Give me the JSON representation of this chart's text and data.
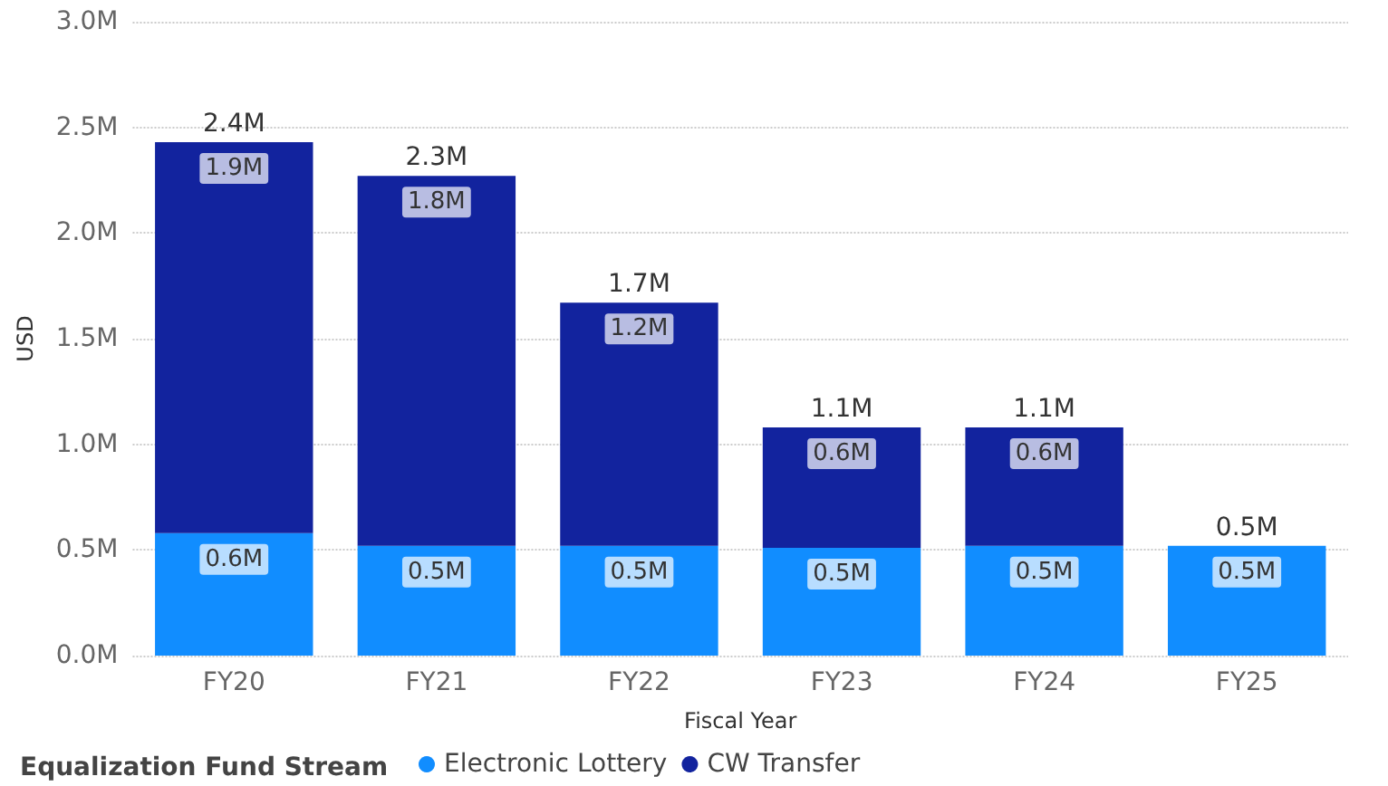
{
  "chart_data": {
    "type": "bar",
    "xlabel": "Fiscal Year",
    "ylabel": "USD",
    "legend_title": "Equalization Fund Stream",
    "categories": [
      "FY20",
      "FY21",
      "FY22",
      "FY23",
      "FY24",
      "FY25"
    ],
    "stacked": true,
    "series": [
      {
        "name": "Electronic Lottery",
        "color": "#118dff",
        "values": [
          0.58,
          0.52,
          0.52,
          0.51,
          0.52,
          0.52
        ],
        "value_labels": [
          "0.6M",
          "0.5M",
          "0.5M",
          "0.5M",
          "0.5M",
          "0.5M"
        ]
      },
      {
        "name": "CW Transfer",
        "color": "#12239e",
        "values": [
          1.85,
          1.75,
          1.15,
          0.57,
          0.56,
          null
        ],
        "value_labels": [
          "1.9M",
          "1.8M",
          "1.2M",
          "0.6M",
          "0.6M",
          null
        ]
      }
    ],
    "totals": [
      "2.4M",
      "2.3M",
      "1.7M",
      "1.1M",
      "1.1M",
      "0.5M"
    ],
    "ylim": [
      0,
      3
    ],
    "yticks": [
      {
        "value": 0,
        "label": "0.0M"
      },
      {
        "value": 0.5,
        "label": "0.5M"
      },
      {
        "value": 1,
        "label": "1.0M"
      },
      {
        "value": 1.5,
        "label": "1.5M"
      },
      {
        "value": 2,
        "label": "2.0M"
      },
      {
        "value": 2.5,
        "label": "2.5M"
      },
      {
        "value": 3,
        "label": "3.0M"
      }
    ],
    "grid": "y",
    "legend": "bottom left"
  }
}
